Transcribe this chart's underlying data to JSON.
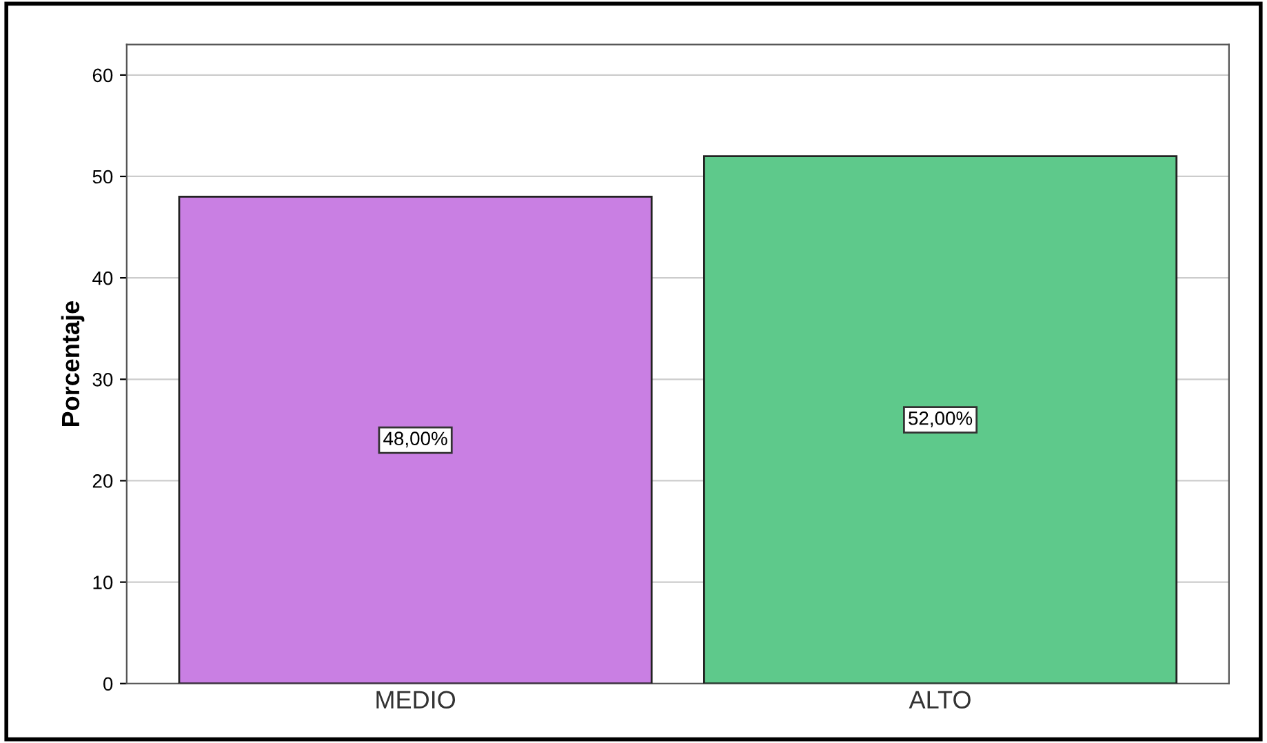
{
  "chart_data": {
    "type": "bar",
    "ylabel": "Porcentaje",
    "categories": [
      "MEDIO",
      "ALTO"
    ],
    "values": [
      48,
      52
    ],
    "colors": [
      "#c97fe3",
      "#5ec98b"
    ],
    "value_labels": [
      "48,00%",
      "52,00%"
    ],
    "ylim": [
      0,
      63
    ],
    "yticks": [
      0,
      10,
      20,
      30,
      40,
      50,
      60
    ],
    "grid": "y"
  }
}
